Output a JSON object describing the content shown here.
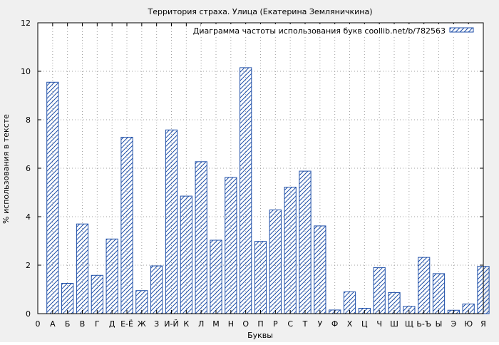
{
  "chart_data": {
    "type": "bar",
    "title": "Территория страха. Улица (Екатерина Земляничкина)",
    "xlabel": "Буквы",
    "ylabel": "% использования в тексте",
    "ylim": [
      0,
      12
    ],
    "yticks": [
      0,
      2,
      4,
      6,
      8,
      10,
      12
    ],
    "grid": true,
    "legend_position": "top-right",
    "categories": [
      "А",
      "Б",
      "В",
      "Г",
      "Д",
      "Е-Ё",
      "Ж",
      "З",
      "И-Й",
      "К",
      "Л",
      "М",
      "Н",
      "О",
      "П",
      "Р",
      "С",
      "Т",
      "У",
      "Ф",
      "Х",
      "Ц",
      "Ч",
      "Ш",
      "Щ",
      "Ь-Ъ",
      "Ы",
      "Э",
      "Ю",
      "Я"
    ],
    "x_tick_labels": [
      "0",
      "А",
      "Б",
      "В",
      "Г",
      "Д",
      "Е-Ё",
      "Ж",
      "З",
      "И-Й",
      "К",
      "Л",
      "М",
      "Н",
      "О",
      "П",
      "Р",
      "С",
      "Т",
      "У",
      "Ф",
      "Х",
      "Ц",
      "Ч",
      "Ш",
      "Щ",
      "Ь-Ъ",
      "Ы",
      "Э",
      "Ю",
      "Я"
    ],
    "series": [
      {
        "name": "Диаграмма частоты использования букв coollib.net/b/782563",
        "values": [
          9.55,
          1.25,
          3.7,
          1.58,
          3.08,
          7.28,
          0.95,
          1.97,
          7.58,
          4.85,
          6.27,
          3.03,
          5.62,
          10.15,
          2.98,
          4.28,
          5.22,
          5.88,
          3.62,
          0.15,
          0.9,
          0.22,
          1.9,
          0.87,
          0.3,
          2.32,
          1.65,
          0.14,
          0.4,
          1.95
        ]
      }
    ],
    "colors": {
      "bar_stroke": "#1f4fa8",
      "hatch": "#1f4fa8",
      "background": "#f0f0f0",
      "plot_background": "#ffffff",
      "grid": "#a0a0a0",
      "axis": "#000000"
    }
  }
}
